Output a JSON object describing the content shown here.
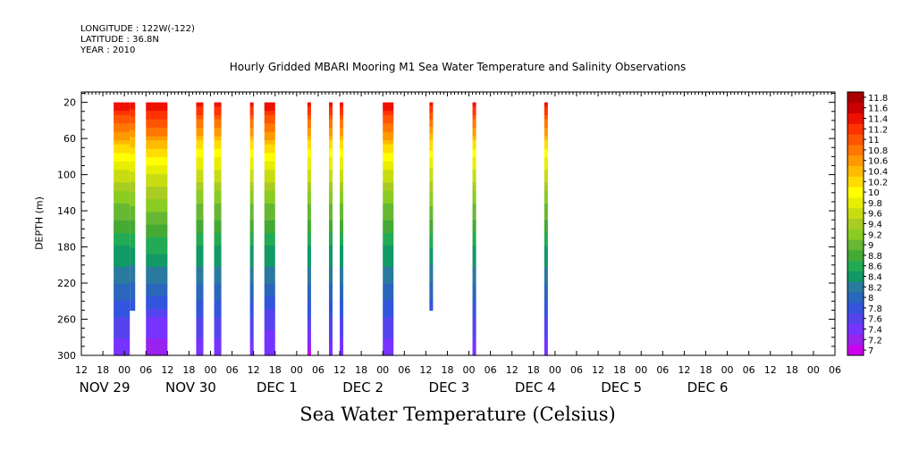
{
  "header": {
    "longitude": "LONGITUDE : 122W(-122)",
    "latitude": "LATITUDE : 36.8N",
    "year": "YEAR : 2010"
  },
  "chart_data": {
    "type": "heatmap",
    "title": "Hourly Gridded MBARI Mooring M1 Sea Water Temperature and Salinity Observations",
    "xlabel": "Sea Water Temperature (Celsius)",
    "ylabel": "DEPTH (m)",
    "x_hours_range": [
      -6,
      204
    ],
    "x_tick_labels": [
      "12",
      "18",
      "00",
      "06",
      "12",
      "18",
      "00",
      "06",
      "12",
      "18",
      "00",
      "06",
      "12",
      "18",
      "00",
      "06",
      "12",
      "18",
      "00",
      "06",
      "12",
      "18",
      "00",
      "06",
      "12",
      "18",
      "00",
      "06",
      "12",
      "18",
      "00",
      "06",
      "12",
      "18",
      "00",
      "06"
    ],
    "x_day_labels": [
      {
        "label": "NOV 29"
      },
      {
        "label": "NOV 30"
      },
      {
        "label": "DEC  1"
      },
      {
        "label": "DEC  2"
      },
      {
        "label": "DEC  3"
      },
      {
        "label": "DEC  4"
      },
      {
        "label": "DEC  5"
      },
      {
        "label": "DEC  6"
      }
    ],
    "ylim": [
      300,
      20
    ],
    "y_ticks": [
      20,
      60,
      100,
      140,
      180,
      220,
      260,
      300
    ],
    "color_levels": [
      7,
      7.2,
      7.4,
      7.6,
      7.8,
      8,
      8.2,
      8.4,
      8.6,
      8.8,
      9,
      9.2,
      9.4,
      9.6,
      9.8,
      10,
      10.2,
      10.4,
      10.6,
      10.8,
      11,
      11.2,
      11.4,
      11.6,
      11.8
    ],
    "colorbar_labels": [
      "11.8",
      "11.6",
      "11.4",
      "11.2",
      "11",
      "10.8",
      "10.6",
      "10.4",
      "10.2",
      "10",
      "9.8",
      "9.6",
      "9.4",
      "9.2",
      "9",
      "8.8",
      "8.6",
      "8.4",
      "8.2",
      "8",
      "7.8",
      "7.6",
      "7.4",
      "7.2",
      "7"
    ],
    "colors": [
      "#cc00ee",
      "#9922ee",
      "#7733ff",
      "#5544ee",
      "#3355dd",
      "#2a66bb",
      "#2a7aa0",
      "#119966",
      "#22aa55",
      "#44aa33",
      "#66b833",
      "#8acc22",
      "#a8cc22",
      "#c8dd11",
      "#e8ee00",
      "#ffff00",
      "#ffdd00",
      "#ffbb00",
      "#ff9900",
      "#ff7700",
      "#ff5500",
      "#ff3300",
      "#ee1100",
      "#cc0000",
      "#aa0000"
    ],
    "profile_depths": [
      20,
      40,
      60,
      80,
      100,
      120,
      140,
      160,
      180,
      200,
      220,
      240,
      260,
      280,
      300
    ],
    "segments": [
      {
        "start": 3,
        "end": 7.5,
        "max_depth": 300,
        "t": [
          11.6,
          11.1,
          10.6,
          10.1,
          9.7,
          9.4,
          9.1,
          8.9,
          8.6,
          8.4,
          8.2,
          8.0,
          7.8,
          7.6,
          7.5
        ]
      },
      {
        "start": 7.5,
        "end": 9,
        "max_depth": 250,
        "t": [
          11.6,
          11.1,
          10.6,
          10.1,
          9.7,
          9.4,
          9.1,
          8.9,
          8.6,
          8.4,
          8.2,
          8.0,
          7.8,
          7.6,
          7.5
        ]
      },
      {
        "start": 12,
        "end": 18,
        "max_depth": 300,
        "t": [
          11.6,
          11.2,
          10.7,
          10.2,
          9.8,
          9.5,
          9.2,
          8.9,
          8.7,
          8.4,
          8.2,
          7.9,
          7.6,
          7.4,
          7.3
        ]
      },
      {
        "start": 26,
        "end": 28,
        "max_depth": 300,
        "t": [
          11.5,
          11.0,
          10.5,
          10.0,
          9.7,
          9.4,
          9.1,
          8.9,
          8.6,
          8.4,
          8.2,
          8.0,
          7.8,
          7.6,
          7.5
        ]
      },
      {
        "start": 31,
        "end": 33,
        "max_depth": 300,
        "t": [
          11.5,
          11.0,
          10.5,
          10.0,
          9.7,
          9.4,
          9.1,
          8.9,
          8.6,
          8.4,
          8.2,
          8.0,
          7.8,
          7.6,
          7.5
        ]
      },
      {
        "start": 41,
        "end": 42,
        "max_depth": 300,
        "t": [
          11.5,
          11.0,
          10.5,
          10.0,
          9.7,
          9.4,
          9.1,
          8.9,
          8.6,
          8.4,
          8.2,
          8.0,
          7.8,
          7.6,
          7.5
        ]
      },
      {
        "start": 45,
        "end": 48,
        "max_depth": 300,
        "t": [
          11.6,
          11.1,
          10.6,
          10.1,
          9.7,
          9.4,
          9.1,
          8.9,
          8.6,
          8.4,
          8.2,
          7.9,
          7.7,
          7.5,
          7.4
        ]
      },
      {
        "start": 57,
        "end": 58,
        "max_depth": 300,
        "t": [
          11.5,
          11.0,
          10.5,
          10.0,
          9.7,
          9.4,
          9.1,
          8.9,
          8.6,
          8.4,
          8.2,
          8.0,
          7.8,
          7.5,
          7.1
        ]
      },
      {
        "start": 63,
        "end": 64,
        "max_depth": 300,
        "t": [
          11.5,
          11.0,
          10.5,
          10.0,
          9.7,
          9.4,
          9.1,
          8.9,
          8.6,
          8.4,
          8.2,
          8.0,
          7.8,
          7.6,
          7.5
        ]
      },
      {
        "start": 66,
        "end": 67,
        "max_depth": 300,
        "t": [
          11.5,
          11.0,
          10.5,
          10.0,
          9.7,
          9.4,
          9.1,
          8.9,
          8.6,
          8.4,
          8.2,
          8.0,
          7.8,
          7.6,
          7.5
        ]
      },
      {
        "start": 78,
        "end": 81,
        "max_depth": 300,
        "t": [
          11.6,
          11.1,
          10.6,
          10.1,
          9.7,
          9.4,
          9.1,
          8.9,
          8.6,
          8.4,
          8.2,
          8.0,
          7.8,
          7.6,
          7.5
        ]
      },
      {
        "start": 91,
        "end": 92,
        "max_depth": 250,
        "t": [
          11.5,
          11.0,
          10.5,
          10.0,
          9.7,
          9.4,
          9.1,
          8.9,
          8.6,
          8.4,
          8.2,
          8.0,
          8.0,
          8.0,
          8.0
        ]
      },
      {
        "start": 103,
        "end": 104,
        "max_depth": 300,
        "t": [
          11.5,
          11.0,
          10.5,
          10.0,
          9.7,
          9.4,
          9.1,
          8.9,
          8.6,
          8.4,
          8.2,
          8.0,
          7.8,
          7.6,
          7.5
        ]
      },
      {
        "start": 123,
        "end": 124,
        "max_depth": 300,
        "t": [
          11.5,
          11.0,
          10.5,
          10.0,
          9.7,
          9.4,
          9.1,
          8.9,
          8.6,
          8.4,
          8.2,
          8.0,
          7.8,
          7.6,
          7.5
        ]
      }
    ]
  }
}
